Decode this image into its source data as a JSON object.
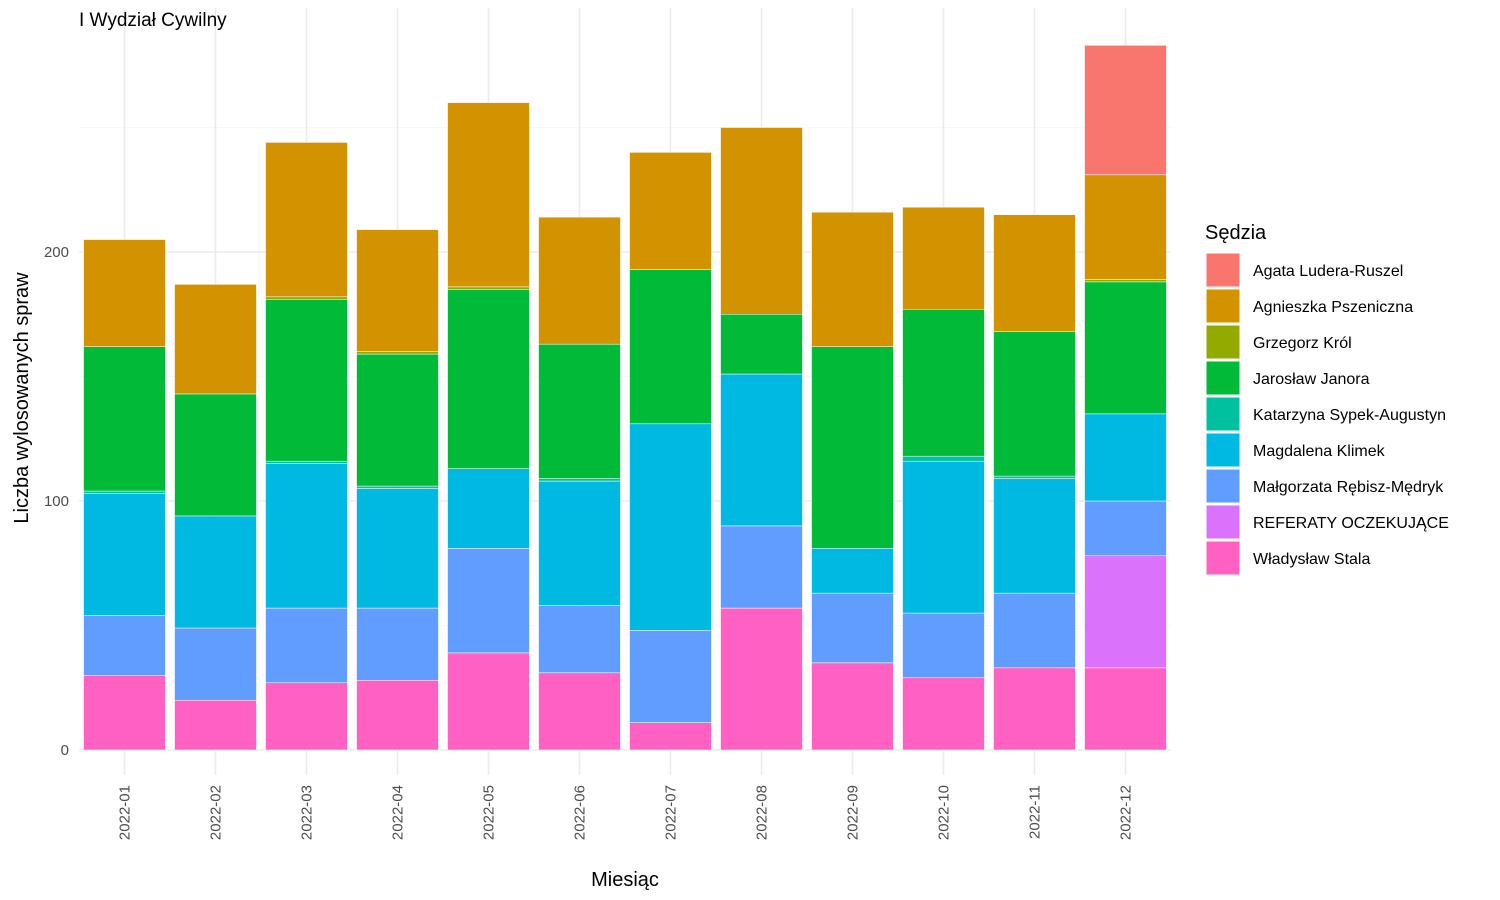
{
  "chart_data": {
    "type": "bar",
    "stacked": true,
    "title": "I Wydział Cywilny",
    "xlabel": "Miesiąc",
    "ylabel": "Liczba wylosowanych spraw",
    "ylim": [
      0,
      283
    ],
    "yticks": [
      0,
      100,
      200
    ],
    "grid": true,
    "legend_title": "Sędzia",
    "legend_position": "right",
    "categories": [
      "2022-01",
      "2022-02",
      "2022-03",
      "2022-04",
      "2022-05",
      "2022-06",
      "2022-07",
      "2022-08",
      "2022-09",
      "2022-10",
      "2022-11",
      "2022-12"
    ],
    "series": [
      {
        "name": "Agata Ludera-Ruszel",
        "color": "#F8766D",
        "values": [
          0,
          0,
          0,
          0,
          0,
          0,
          0,
          0,
          0,
          0,
          0,
          52
        ]
      },
      {
        "name": "Agnieszka Pszeniczna",
        "color": "#D39200",
        "values": [
          43,
          44,
          62,
          49,
          74,
          51,
          47,
          75,
          54,
          41,
          47,
          42
        ]
      },
      {
        "name": "Grzegorz Król",
        "color": "#93AA00",
        "values": [
          0,
          0,
          1,
          1,
          1,
          0,
          0,
          0,
          0,
          0,
          0,
          1
        ]
      },
      {
        "name": "Jarosław Janora",
        "color": "#00BA38",
        "values": [
          58,
          49,
          65,
          53,
          72,
          54,
          62,
          24,
          81,
          59,
          58,
          53
        ]
      },
      {
        "name": "Katarzyna Sypek-Augustyn",
        "color": "#00C19F",
        "values": [
          1,
          0,
          1,
          1,
          0,
          1,
          0,
          0,
          0,
          2,
          1,
          0
        ]
      },
      {
        "name": "Magdalena Klimek",
        "color": "#00B9E3",
        "values": [
          49,
          45,
          58,
          48,
          32,
          50,
          83,
          61,
          18,
          61,
          46,
          35
        ]
      },
      {
        "name": "Małgorzata Rębisz-Mędryk",
        "color": "#619CFF",
        "values": [
          24,
          29,
          30,
          29,
          42,
          27,
          37,
          33,
          28,
          26,
          30,
          22
        ]
      },
      {
        "name": "REFERATY OCZEKUJĄCE",
        "color": "#DB72FB",
        "values": [
          0,
          0,
          0,
          0,
          0,
          0,
          0,
          0,
          0,
          0,
          0,
          45
        ]
      },
      {
        "name": "Władysław Stala",
        "color": "#FF61C3",
        "values": [
          30,
          20,
          27,
          28,
          39,
          31,
          11,
          57,
          35,
          29,
          33,
          33
        ]
      }
    ]
  }
}
